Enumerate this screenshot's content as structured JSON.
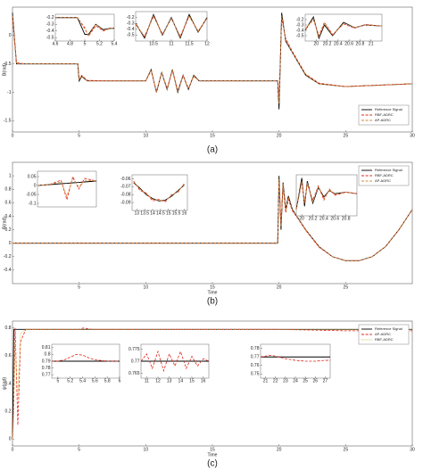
{
  "chart_data": [
    {
      "type": "line",
      "caption": "(a)",
      "ylabel": "B(rad)",
      "legend": "lower right",
      "x": [
        0,
        0.3,
        1,
        3,
        4.9,
        5,
        5.2,
        5.6,
        7,
        10,
        10.4,
        10.8,
        11.2,
        11.6,
        12,
        12.4,
        12.8,
        13.2,
        13.6,
        14,
        16,
        19.9,
        20,
        20.2,
        20.5,
        21,
        22,
        23,
        25,
        27,
        30
      ],
      "xlim": [
        0,
        30
      ],
      "xticks": [
        0,
        5,
        10,
        15,
        20,
        25,
        30
      ],
      "ylim": [
        -1.7,
        0.5
      ],
      "yticks": [
        0,
        -0.5,
        -1,
        -1.5
      ],
      "series": [
        {
          "name": "Reference Signal",
          "color": "#000000",
          "style": "solid",
          "values": [
            0.4,
            -0.5,
            -0.5,
            -0.5,
            -0.5,
            -0.8,
            -0.72,
            -0.8,
            -0.8,
            -0.8,
            -0.6,
            -1.0,
            -0.65,
            -0.95,
            -0.6,
            -1.0,
            -0.7,
            -0.95,
            -0.7,
            -0.8,
            -0.8,
            -0.8,
            -1.3,
            0.4,
            -0.1,
            -0.3,
            -0.7,
            -0.85,
            -0.9,
            -0.88,
            -0.85
          ]
        },
        {
          "name": "RBF-ADRC",
          "color": "#e3261b",
          "style": "dashed",
          "values": [
            0.3,
            -0.48,
            -0.5,
            -0.5,
            -0.5,
            -0.76,
            -0.7,
            -0.79,
            -0.8,
            -0.8,
            -0.62,
            -0.98,
            -0.66,
            -0.93,
            -0.62,
            -0.97,
            -0.7,
            -0.93,
            -0.72,
            -0.8,
            -0.8,
            -0.8,
            -1.1,
            0.3,
            -0.05,
            -0.28,
            -0.68,
            -0.84,
            -0.9,
            -0.88,
            -0.85
          ]
        },
        {
          "name": "AP-ADRC",
          "color": "#d08a3a",
          "style": "dashed",
          "values": [
            0.35,
            -0.5,
            -0.5,
            -0.5,
            -0.5,
            -0.78,
            -0.71,
            -0.8,
            -0.8,
            -0.8,
            -0.61,
            -0.99,
            -0.65,
            -0.94,
            -0.61,
            -0.98,
            -0.71,
            -0.94,
            -0.71,
            -0.8,
            -0.8,
            -0.8,
            -1.2,
            0.35,
            -0.08,
            -0.3,
            -0.69,
            -0.85,
            -0.9,
            -0.88,
            -0.85
          ]
        }
      ]
    },
    {
      "type": "line",
      "x": [
        4.6,
        4.9,
        5,
        5.05,
        5.15,
        5.25,
        5.35,
        5.4
      ],
      "xlim": [
        4.6,
        5.4
      ],
      "xticks": [
        4.6,
        4.8,
        5,
        5.2,
        5.4
      ],
      "ylim": [
        -0.55,
        -0.15
      ],
      "yticks": [
        -0.2,
        -0.3,
        -0.4,
        -0.5
      ],
      "series": [
        {
          "color": "#000000",
          "style": "solid",
          "values": [
            -0.2,
            -0.2,
            -0.45,
            -0.45,
            -0.3,
            -0.38,
            -0.36,
            -0.36
          ]
        },
        {
          "color": "#e3261b",
          "style": "dashed",
          "values": [
            -0.2,
            -0.2,
            -0.35,
            -0.48,
            -0.32,
            -0.4,
            -0.36,
            -0.36
          ]
        },
        {
          "color": "#d08a3a",
          "style": "dashed",
          "values": [
            -0.2,
            -0.2,
            -0.37,
            -0.47,
            -0.3,
            -0.39,
            -0.36,
            -0.36
          ]
        }
      ]
    },
    {
      "type": "line",
      "x": [
        10,
        10.25,
        10.5,
        10.75,
        11,
        11.25,
        11.5,
        11.75,
        12
      ],
      "xlim": [
        10,
        12
      ],
      "xticks": [
        10.5,
        11,
        11.5,
        12
      ],
      "ylim": [
        -0.6,
        -0.1
      ],
      "yticks": [
        -0.2,
        -0.3,
        -0.4,
        -0.5
      ],
      "series": [
        {
          "color": "#000000",
          "style": "solid",
          "values": [
            -0.3,
            -0.55,
            -0.15,
            -0.5,
            -0.2,
            -0.55,
            -0.15,
            -0.45,
            -0.2
          ]
        },
        {
          "color": "#e3261b",
          "style": "dashed",
          "values": [
            -0.32,
            -0.52,
            -0.18,
            -0.48,
            -0.22,
            -0.52,
            -0.18,
            -0.43,
            -0.22
          ]
        },
        {
          "color": "#d08a3a",
          "style": "dashed",
          "values": [
            -0.31,
            -0.53,
            -0.17,
            -0.49,
            -0.21,
            -0.53,
            -0.17,
            -0.44,
            -0.21
          ]
        }
      ]
    },
    {
      "type": "line",
      "x": [
        19.8,
        19.95,
        20.05,
        20.15,
        20.3,
        20.5,
        20.7,
        20.9,
        21.2
      ],
      "xlim": [
        19.8,
        21.2
      ],
      "xticks": [
        20,
        20.2,
        20.4,
        20.6,
        20.8,
        21
      ],
      "ylim": [
        -0.6,
        -0.1
      ],
      "yticks": [
        -0.2,
        -0.3,
        -0.4,
        -0.5
      ],
      "series": [
        {
          "color": "#000000",
          "style": "solid",
          "values": [
            -0.4,
            -0.15,
            -0.55,
            -0.3,
            -0.5,
            -0.25,
            -0.35,
            -0.3,
            -0.32
          ]
        },
        {
          "color": "#e3261b",
          "style": "dashed",
          "values": [
            -0.38,
            -0.2,
            -0.5,
            -0.25,
            -0.48,
            -0.28,
            -0.36,
            -0.29,
            -0.32
          ]
        },
        {
          "color": "#d08a3a",
          "style": "dashed",
          "values": [
            -0.39,
            -0.18,
            -0.52,
            -0.27,
            -0.49,
            -0.27,
            -0.35,
            -0.3,
            -0.32
          ]
        }
      ]
    },
    {
      "type": "line",
      "caption": "(b)",
      "xlabel": "Time",
      "ylabel": "B(rad)",
      "legend": "upper right",
      "x": [
        0,
        5,
        10,
        15,
        19.9,
        20,
        20.15,
        20.3,
        20.5,
        20.7,
        21,
        21.5,
        22,
        23,
        24,
        25,
        26,
        27,
        28,
        29,
        30
      ],
      "xlim": [
        0,
        30
      ],
      "xticks": [
        5,
        10,
        15,
        20,
        25
      ],
      "ylim": [
        -0.6,
        1.2
      ],
      "yticks": [
        -0.4,
        -0.2,
        0,
        0.2,
        0.4,
        0.6,
        0.8,
        1
      ],
      "series": [
        {
          "name": "Reference Signal",
          "color": "#000000",
          "style": "solid",
          "values": [
            0,
            0,
            0,
            0,
            0,
            1.0,
            0.2,
            0.9,
            0.5,
            0.7,
            0.5,
            0.35,
            0.2,
            -0.05,
            -0.2,
            -0.26,
            -0.26,
            -0.2,
            -0.05,
            0.2,
            0.5
          ]
        },
        {
          "name": "RBF-ADRC",
          "color": "#e3261b",
          "style": "dashed",
          "values": [
            0,
            0,
            0,
            0,
            0,
            0.9,
            0.3,
            0.85,
            0.45,
            0.65,
            0.48,
            0.34,
            0.19,
            -0.06,
            -0.2,
            -0.26,
            -0.26,
            -0.2,
            -0.05,
            0.2,
            0.5
          ]
        },
        {
          "name": "AP-ADRC",
          "color": "#d08a3a",
          "style": "dashed",
          "values": [
            0,
            0,
            0,
            0,
            0,
            0.95,
            0.25,
            0.88,
            0.48,
            0.68,
            0.49,
            0.35,
            0.2,
            -0.05,
            -0.2,
            -0.26,
            -0.26,
            -0.2,
            -0.05,
            0.2,
            0.5
          ]
        }
      ]
    },
    {
      "type": "line",
      "x": [
        0,
        0.2,
        0.4,
        0.5,
        0.6,
        0.7,
        0.8,
        1
      ],
      "xlim": [
        0,
        1
      ],
      "ylim": [
        -0.12,
        0.08
      ],
      "yticks": [
        0.05,
        0,
        -0.05,
        -0.1
      ],
      "series": [
        {
          "color": "#000000",
          "style": "solid",
          "values": [
            0,
            0.005,
            0.01,
            0.012,
            0.015,
            0.017,
            0.02,
            0.025
          ]
        },
        {
          "color": "#e3261b",
          "style": "dashed",
          "values": [
            0,
            0.005,
            0.03,
            -0.08,
            0.05,
            -0.02,
            0.04,
            0.025
          ]
        },
        {
          "color": "#d08a3a",
          "style": "dashed",
          "values": [
            0,
            0.005,
            0.02,
            -0.06,
            0.04,
            -0.01,
            0.03,
            0.025
          ]
        }
      ]
    },
    {
      "type": "line",
      "x": [
        12.8,
        13.2,
        13.6,
        14,
        14.4,
        14.8,
        15.2,
        15.6,
        16
      ],
      "xlim": [
        12.7,
        16.2
      ],
      "xticks": [
        13,
        13.5,
        14,
        14.5,
        15,
        15.5,
        16
      ],
      "ylim": [
        -0.1,
        -0.055
      ],
      "yticks": [
        -0.06,
        -0.07,
        -0.08,
        -0.09
      ],
      "series": [
        {
          "color": "#000000",
          "style": "solid",
          "values": [
            -0.065,
            -0.072,
            -0.08,
            -0.085,
            -0.088,
            -0.087,
            -0.082,
            -0.075,
            -0.068
          ]
        },
        {
          "color": "#e3261b",
          "style": "dashed",
          "values": [
            -0.063,
            -0.075,
            -0.078,
            -0.088,
            -0.086,
            -0.089,
            -0.08,
            -0.077,
            -0.066
          ]
        },
        {
          "color": "#d08a3a",
          "style": "dashed",
          "values": [
            -0.064,
            -0.073,
            -0.079,
            -0.086,
            -0.087,
            -0.088,
            -0.081,
            -0.076,
            -0.067
          ]
        }
      ]
    },
    {
      "type": "line",
      "x": [
        19.9,
        20,
        20.05,
        20.1,
        20.2,
        20.3,
        20.4,
        20.5,
        20.6,
        20.8,
        21
      ],
      "xlim": [
        19.9,
        21
      ],
      "xticks": [
        20,
        20.2,
        20.4,
        20.6,
        20.8
      ],
      "ylim": [
        -0.2,
        1.1
      ],
      "series": [
        {
          "color": "#000000",
          "style": "solid",
          "values": [
            0,
            1,
            0.1,
            0.9,
            0.2,
            0.7,
            0.4,
            0.6,
            0.5,
            0.55,
            0.5
          ]
        },
        {
          "color": "#e3261b",
          "style": "dashed",
          "values": [
            0,
            0.85,
            0.25,
            0.8,
            0.3,
            0.75,
            0.3,
            0.65,
            0.45,
            0.55,
            0.5
          ]
        },
        {
          "color": "#d08a3a",
          "style": "dashed",
          "values": [
            0,
            0.9,
            0.2,
            0.85,
            0.25,
            0.72,
            0.35,
            0.62,
            0.48,
            0.55,
            0.5
          ]
        }
      ]
    },
    {
      "type": "line",
      "caption": "(c)",
      "xlabel": "Time",
      "ylabel": "ψ(rad)",
      "legend": "upper right",
      "x": [
        0,
        0.1,
        0.2,
        0.4,
        0.6,
        1,
        5,
        5.3,
        6,
        10,
        15,
        20,
        25,
        30
      ],
      "xlim": [
        0,
        30
      ],
      "xticks": [
        0,
        5,
        10,
        15,
        20,
        25,
        30
      ],
      "ylim": [
        -0.05,
        0.85
      ],
      "yticks": [
        0,
        0.2,
        0.4,
        0.6,
        0.8
      ],
      "series": [
        {
          "name": "Reference Signal",
          "color": "#000000",
          "style": "solid",
          "values": [
            0,
            0.79,
            0.79,
            0.79,
            0.79,
            0.79,
            0.79,
            0.79,
            0.79,
            0.79,
            0.79,
            0.79,
            0.79,
            0.79
          ]
        },
        {
          "name": "AP-ADRC",
          "color": "#e3261b",
          "style": "dashed",
          "values": [
            0,
            0.3,
            0.8,
            0.1,
            0.7,
            0.79,
            0.79,
            0.8,
            0.79,
            0.79,
            0.79,
            0.79,
            0.78,
            0.78
          ]
        },
        {
          "name": "RBF-ADRC",
          "color": "#cbbd45",
          "style": "dotted",
          "values": [
            0,
            0.2,
            0.7,
            0.3,
            0.76,
            0.79,
            0.79,
            0.79,
            0.79,
            0.79,
            0.79,
            0.79,
            0.79,
            0.79
          ]
        }
      ]
    },
    {
      "type": "line",
      "x": [
        4.9,
        5,
        5.1,
        5.2,
        5.3,
        5.4,
        5.5,
        5.6,
        5.8,
        6
      ],
      "xlim": [
        4.9,
        6
      ],
      "xticks": [
        5,
        5.2,
        5.4,
        5.6,
        5.8,
        6
      ],
      "ylim": [
        0.765,
        0.815
      ],
      "yticks": [
        0.81,
        0.8,
        0.79,
        0.78,
        0.77
      ],
      "series": [
        {
          "color": "#000000",
          "style": "solid",
          "values": [
            0.79,
            0.79,
            0.79,
            0.79,
            0.79,
            0.79,
            0.79,
            0.79,
            0.79,
            0.79
          ]
        },
        {
          "color": "#e3261b",
          "style": "dashed",
          "values": [
            0.79,
            0.79,
            0.792,
            0.796,
            0.8,
            0.799,
            0.795,
            0.792,
            0.79,
            0.79
          ]
        }
      ]
    },
    {
      "type": "line",
      "x": [
        10.5,
        11,
        11.5,
        12,
        12.5,
        13,
        13.5,
        14,
        14.5,
        15,
        15.5,
        16,
        16.5
      ],
      "xlim": [
        10.5,
        16.5
      ],
      "xticks": [
        11,
        12,
        13,
        14,
        15,
        16
      ],
      "ylim": [
        0.763,
        0.777
      ],
      "yticks": [
        0.775,
        0.77,
        0.765
      ],
      "series": [
        {
          "color": "#000000",
          "style": "solid",
          "values": [
            0.77,
            0.77,
            0.77,
            0.77,
            0.77,
            0.77,
            0.77,
            0.77,
            0.77,
            0.77,
            0.77,
            0.77,
            0.77
          ]
        },
        {
          "color": "#e3261b",
          "style": "dashed",
          "values": [
            0.77,
            0.773,
            0.767,
            0.774,
            0.766,
            0.773,
            0.768,
            0.774,
            0.767,
            0.772,
            0.768,
            0.771,
            0.77
          ]
        }
      ]
    },
    {
      "type": "line",
      "x": [
        20.5,
        21,
        21.5,
        22,
        23,
        24,
        25,
        26,
        27,
        27.5
      ],
      "xlim": [
        20.5,
        27.5
      ],
      "xticks": [
        21,
        22,
        23,
        24,
        25,
        26,
        27
      ],
      "ylim": [
        0.745,
        0.785
      ],
      "yticks": [
        0.78,
        0.77,
        0.76,
        0.75
      ],
      "series": [
        {
          "color": "#000000",
          "style": "solid",
          "values": [
            0.77,
            0.77,
            0.77,
            0.77,
            0.77,
            0.77,
            0.77,
            0.77,
            0.77,
            0.77
          ]
        },
        {
          "color": "#e3261b",
          "style": "dashed",
          "values": [
            0.77,
            0.771,
            0.772,
            0.771,
            0.768,
            0.766,
            0.765,
            0.765,
            0.766,
            0.766
          ]
        }
      ]
    }
  ]
}
